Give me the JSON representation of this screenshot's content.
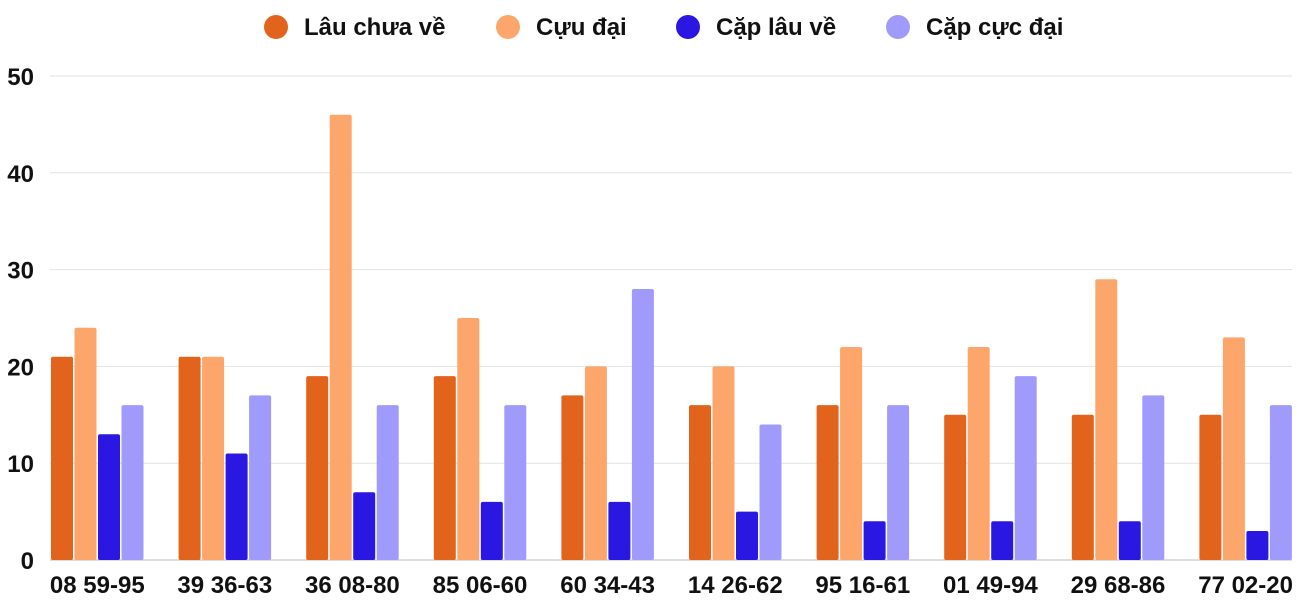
{
  "chart_data": {
    "type": "bar",
    "title": "",
    "xlabel": "",
    "ylabel": "",
    "ylim": [
      0,
      50
    ],
    "yticks": [
      0,
      10,
      20,
      30,
      40,
      50
    ],
    "grid": true,
    "legend_position": "top-center",
    "categories": [
      "08 59-95",
      "39 36-63",
      "36 08-80",
      "85 06-60",
      "60 34-43",
      "14 26-62",
      "95 16-61",
      "01 49-94",
      "29 68-86",
      "77 02-20"
    ],
    "series": [
      {
        "name": "Lâu chưa về",
        "color": "#e2631b",
        "values": [
          21,
          21,
          19,
          19,
          17,
          16,
          16,
          15,
          15,
          15
        ]
      },
      {
        "name": "Cựu đại",
        "color": "#fca66c",
        "values": [
          24,
          21,
          46,
          25,
          20,
          20,
          22,
          22,
          29,
          23
        ]
      },
      {
        "name": "Cặp lâu về",
        "color": "#2a18e2",
        "values": [
          13,
          11,
          7,
          6,
          6,
          5,
          4,
          4,
          4,
          3
        ]
      },
      {
        "name": "Cặp cực đại",
        "color": "#a09bfb",
        "values": [
          16,
          17,
          16,
          16,
          28,
          14,
          16,
          19,
          17,
          16
        ]
      }
    ]
  }
}
